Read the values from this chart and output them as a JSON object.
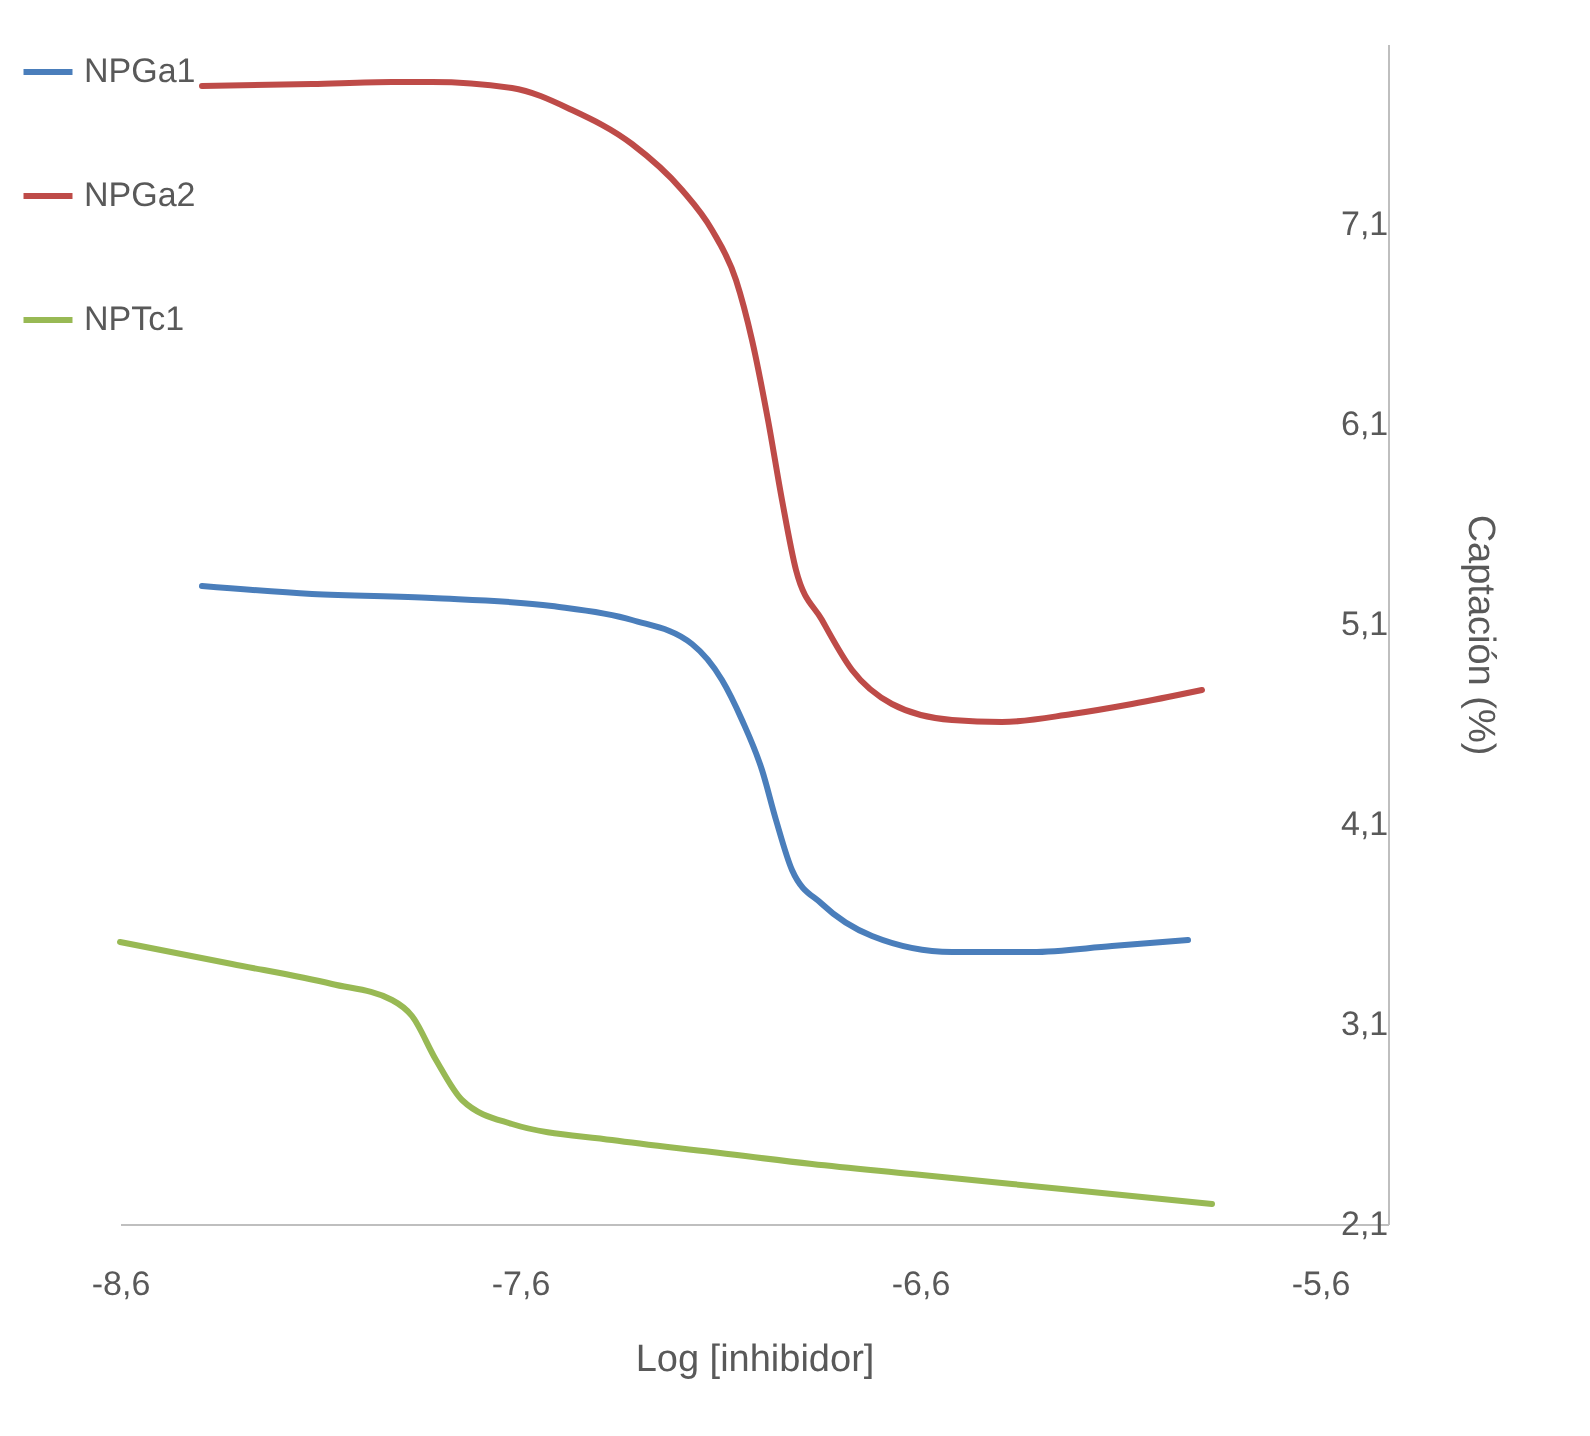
{
  "chart_data": {
    "type": "line",
    "xlabel": "Log [inhibidor]",
    "ylabel": "Captación (%)",
    "xlim": [
      -8.6,
      -5.43
    ],
    "ylim": [
      2.1,
      8.0
    ],
    "xticks": [
      {
        "value": -8.6,
        "label": "-8,6"
      },
      {
        "value": -7.6,
        "label": "-7,6"
      },
      {
        "value": -6.6,
        "label": "-6,6"
      },
      {
        "value": -5.6,
        "label": "-5,6"
      }
    ],
    "yticks": [
      {
        "value": 2.1,
        "label": "2,1"
      },
      {
        "value": 3.1,
        "label": "3,1"
      },
      {
        "value": 4.1,
        "label": "4,1"
      },
      {
        "value": 5.1,
        "label": "5,1"
      },
      {
        "value": 6.1,
        "label": "6,1"
      },
      {
        "value": 7.1,
        "label": "7,1"
      }
    ],
    "grid": false,
    "legend": "left",
    "marker": "none",
    "line_style": "solid",
    "series": [
      {
        "name": "NPGa1",
        "color": "#4a7ebb",
        "x": [
          -8.395,
          -8.12,
          -7.82,
          -7.52,
          -7.32,
          -7.17,
          -7.095,
          -7.045,
          -6.995,
          -6.96,
          -6.92,
          -6.845,
          -6.72,
          -6.52,
          -6.32,
          -6.12,
          -5.93
        ],
        "values": [
          5.29,
          5.25,
          5.23,
          5.19,
          5.12,
          5.0,
          4.82,
          4.62,
          4.37,
          4.12,
          3.87,
          3.7,
          3.54,
          3.46,
          3.46,
          3.49,
          3.52
        ]
      },
      {
        "name": "NPGa2",
        "color": "#be4b48",
        "x": [
          -8.395,
          -8.12,
          -7.92,
          -7.82,
          -7.62,
          -7.47,
          -7.32,
          -7.195,
          -7.12,
          -7.06,
          -7.02,
          -6.98,
          -6.945,
          -6.91,
          -6.845,
          -6.77,
          -6.67,
          -6.52,
          -6.395,
          -6.22,
          -6.07,
          -5.895
        ],
        "values": [
          7.79,
          7.8,
          7.81,
          7.81,
          7.78,
          7.67,
          7.5,
          7.27,
          7.07,
          6.82,
          6.52,
          6.12,
          5.72,
          5.37,
          5.12,
          4.87,
          4.7,
          4.62,
          4.61,
          4.65,
          4.7,
          4.77
        ]
      },
      {
        "name": "NPTc1",
        "color": "#98b954",
        "x": [
          -8.6,
          -8.32,
          -8.07,
          -7.92,
          -7.87,
          -7.81,
          -7.745,
          -7.62,
          -7.37,
          -7.12,
          -6.87,
          -6.62,
          -6.37,
          -6.12,
          -5.87
        ],
        "values": [
          3.51,
          3.4,
          3.3,
          3.22,
          3.14,
          2.92,
          2.72,
          2.6,
          2.52,
          2.46,
          2.4,
          2.35,
          2.3,
          2.25,
          2.2
        ]
      }
    ]
  }
}
